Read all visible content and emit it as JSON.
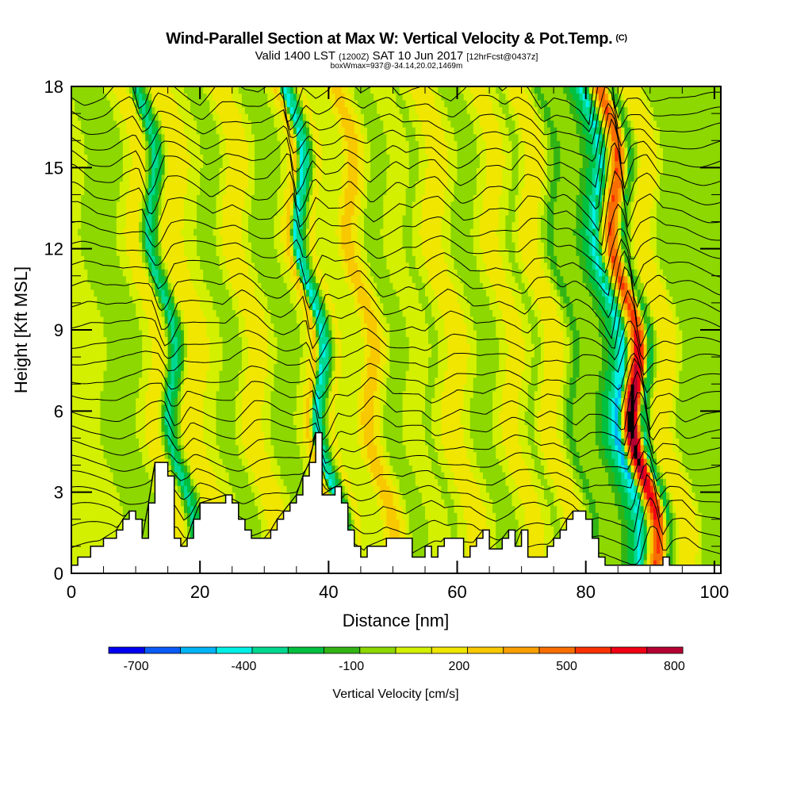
{
  "header": {
    "title": "Wind-Parallel Section at Max W: Vertical Velocity & Pot.Temp.",
    "copyright": "(C)",
    "valid_prefix": "Valid 1400 LST",
    "valid_utc": "(1200Z)",
    "valid_date": "SAT 10 Jun 2017",
    "forecast_info": "[12hrFcst@0437z]",
    "box_info": "boxWmax=937@-34.14,20.02,1469m"
  },
  "chart_data": {
    "type": "heatmap",
    "title": "Wind-Parallel Section at Max W: Vertical Velocity & Pot.Temp.",
    "xlabel": "Distance [nm]",
    "ylabel": "Height [Kft MSL]",
    "xlim": [
      0,
      101
    ],
    "ylim": [
      0,
      18
    ],
    "xticks": [
      0,
      20,
      40,
      60,
      80,
      100
    ],
    "yticks": [
      0,
      3,
      6,
      9,
      12,
      15,
      18
    ],
    "x_minor_step": 5,
    "y_minor_step": 1,
    "colorbar": {
      "label": "Vertical Velocity [cm/s]",
      "placement": "bottom",
      "bounds": [
        -800,
        -700,
        -600,
        -500,
        -400,
        -300,
        -200,
        -100,
        0,
        100,
        200,
        300,
        400,
        500,
        600,
        700,
        800,
        900
      ],
      "tick_labels": [
        "-700",
        "-400",
        "-100",
        "200",
        "500",
        "800"
      ],
      "tick_values": [
        -700,
        -400,
        -100,
        200,
        500,
        800
      ],
      "colors": [
        "#0000f0",
        "#0a5af5",
        "#00b4f5",
        "#00f0e6",
        "#00d890",
        "#00c040",
        "#32b414",
        "#8cd800",
        "#d2f000",
        "#f0e600",
        "#f8c800",
        "#f8a000",
        "#f86e00",
        "#f83200",
        "#f00014",
        "#b40032"
      ]
    },
    "w_columns": {
      "x": [
        0,
        3,
        6,
        9,
        11,
        13,
        14.5,
        15.5,
        17,
        19,
        21,
        24,
        27,
        29,
        31,
        33,
        35,
        36.5,
        37.5,
        38.5,
        40,
        42,
        44,
        45.5,
        47,
        49,
        51,
        53,
        55,
        57,
        59,
        61,
        63,
        65,
        67,
        69,
        71,
        73,
        75,
        77,
        79,
        81,
        83,
        84.5,
        85.5,
        86.5,
        87.5,
        88.5,
        90,
        92,
        94,
        97,
        101
      ],
      "w": [
        50,
        50,
        -100,
        -50,
        100,
        150,
        -350,
        -250,
        180,
        150,
        50,
        -100,
        200,
        120,
        -50,
        -100,
        50,
        250,
        -450,
        -300,
        150,
        0,
        100,
        280,
        150,
        -100,
        0,
        100,
        -50,
        100,
        200,
        50,
        -100,
        0,
        150,
        100,
        -50,
        180,
        120,
        -150,
        0,
        -100,
        -300,
        -550,
        300,
        850,
        600,
        -350,
        100,
        200,
        -50,
        0,
        -100
      ],
      "tilt_nm_per_kft": -0.45
    },
    "terrain_kft": {
      "x": [
        0,
        1,
        3,
        5,
        7,
        8,
        9,
        10,
        11,
        12,
        13,
        14,
        15,
        16,
        17,
        18,
        19,
        20,
        24,
        25,
        26,
        27,
        28,
        30,
        31,
        32,
        33,
        34,
        35,
        36,
        37,
        38,
        39,
        41,
        42,
        43,
        44,
        45,
        46,
        49,
        53,
        55,
        56,
        57,
        58,
        60,
        61,
        62,
        63,
        64,
        65,
        67,
        68,
        69,
        70,
        71,
        74,
        75,
        76,
        77,
        78,
        79,
        80,
        81,
        82,
        83,
        84,
        85,
        86,
        87,
        92,
        93,
        95,
        96,
        101
      ],
      "h": [
        0.3,
        0.6,
        1.0,
        1.3,
        1.6,
        2.0,
        2.3,
        2.0,
        1.3,
        2.6,
        4.1,
        4.1,
        3.6,
        1.3,
        1.0,
        1.3,
        2.0,
        2.6,
        2.9,
        2.6,
        2.0,
        1.6,
        1.3,
        1.3,
        1.6,
        2.0,
        2.3,
        2.6,
        2.9,
        3.6,
        4.1,
        5.2,
        2.9,
        3.2,
        2.6,
        1.6,
        1.0,
        0.6,
        1.0,
        1.3,
        0.6,
        1.0,
        0.6,
        1.0,
        1.3,
        1.3,
        0.6,
        1.0,
        1.3,
        1.6,
        0.9,
        1.3,
        1.6,
        1.0,
        1.6,
        0.6,
        1.0,
        1.3,
        1.6,
        2.0,
        2.3,
        2.3,
        2.0,
        1.3,
        0.6,
        0.3,
        0.3,
        0.3,
        0.3,
        0.3,
        0.6,
        0.3,
        0.3,
        0.3,
        0.3
      ]
    },
    "theta_contours": {
      "count": 27,
      "base_heights_kft": [
        0.9,
        1.6,
        2.3,
        2.9,
        3.5,
        4.1,
        4.7,
        5.3,
        5.9,
        6.6,
        7.2,
        7.9,
        8.5,
        9.2,
        9.9,
        10.6,
        11.3,
        12.0,
        12.7,
        13.4,
        14.1,
        14.8,
        15.4,
        16.0,
        16.6,
        17.2,
        17.8
      ]
    }
  }
}
